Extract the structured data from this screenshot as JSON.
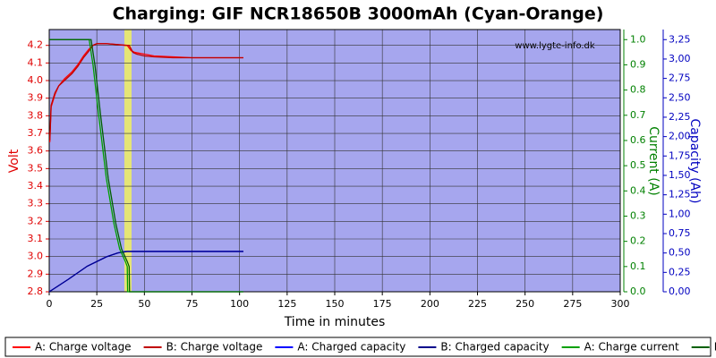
{
  "chart_data": {
    "type": "line",
    "title": "Charging: GIF NCR18650B 3000mAh (Cyan-Orange)",
    "watermark": "www.lygte-info.dk",
    "x_label": "Time in minutes",
    "y_label": "Volt",
    "y2_label": "Current (A)",
    "y3_label": "Capacity (Ah)",
    "xlim": [
      0,
      300
    ],
    "xticks": [
      0,
      25,
      50,
      75,
      100,
      125,
      150,
      175,
      200,
      225,
      250,
      275,
      300
    ],
    "ylim": [
      2.8,
      4.29
    ],
    "yticks": [
      2.8,
      2.9,
      {
        "value": 3.0,
        "label": "3.0"
      },
      3.1,
      3.2,
      3.3,
      3.4,
      3.5,
      3.6,
      3.7,
      3.8,
      3.9,
      {
        "value": 4.0,
        "label": "4.0"
      },
      4.1,
      4.2
    ],
    "y2lim": [
      0,
      1.04
    ],
    "y2ticks": [
      {
        "value": 0,
        "label": "0.0"
      },
      0.1,
      0.2,
      0.3,
      0.4,
      0.5,
      0.6,
      0.7,
      0.8,
      0.9,
      {
        "value": 1,
        "label": "1.0"
      }
    ],
    "y3lim": [
      0,
      3.38
    ],
    "y3ticks": [
      {
        "value": 0,
        "label": "0,00"
      },
      {
        "value": 0.25,
        "label": "0,25"
      },
      {
        "value": 0.5,
        "label": "0,50"
      },
      {
        "value": 0.75,
        "label": "0,75"
      },
      {
        "value": 1,
        "label": "1,00"
      },
      {
        "value": 1.25,
        "label": "1,25"
      },
      {
        "value": 1.5,
        "label": "1,50"
      },
      {
        "value": 1.75,
        "label": "1,75"
      },
      {
        "value": 2,
        "label": "2,00"
      },
      {
        "value": 2.25,
        "label": "2,25"
      },
      {
        "value": 2.5,
        "label": "2,50"
      },
      {
        "value": 2.75,
        "label": "2,75"
      },
      {
        "value": 3,
        "label": "3,00"
      },
      {
        "value": 3.25,
        "label": "3,25"
      }
    ],
    "grid": true,
    "series": [
      {
        "name": "A: Charge voltage",
        "color": "#ff0000",
        "axis": "y",
        "x": [
          0.3,
          1,
          3,
          5,
          8,
          12,
          15,
          18,
          21,
          23,
          25,
          30,
          40,
          41,
          43,
          45,
          50,
          55,
          65,
          75,
          90,
          102
        ],
        "values": [
          3.65,
          3.85,
          3.92,
          3.97,
          4.01,
          4.05,
          4.09,
          4.14,
          4.18,
          4.2,
          4.21,
          4.21,
          4.2,
          4.2,
          4.17,
          4.16,
          4.15,
          4.14,
          4.135,
          4.13,
          4.13,
          4.13
        ]
      },
      {
        "name": "B: Charge voltage",
        "color": "#c00000",
        "axis": "y",
        "x": [
          0.3,
          1,
          3,
          5,
          8,
          12,
          15,
          18,
          21,
          23,
          25,
          30,
          41,
          42,
          44,
          46,
          50,
          55,
          65,
          75,
          90,
          102
        ],
        "values": [
          3.66,
          3.86,
          3.93,
          3.97,
          4.0,
          4.04,
          4.08,
          4.13,
          4.17,
          4.2,
          4.21,
          4.21,
          4.2,
          4.2,
          4.16,
          4.15,
          4.14,
          4.135,
          4.13,
          4.13,
          4.13,
          4.13
        ]
      },
      {
        "name": "A: Charged capacity",
        "color": "#0000ff",
        "axis": "y3",
        "x": [
          0,
          10,
          20,
          30,
          36,
          40,
          50,
          75,
          102
        ],
        "values": [
          0,
          0.16,
          0.33,
          0.45,
          0.5,
          0.52,
          0.52,
          0.52,
          0.52
        ]
      },
      {
        "name": "B: Charged capacity",
        "color": "#00008b",
        "axis": "y3",
        "x": [
          0,
          10,
          20,
          30,
          36,
          41,
          50,
          75,
          102
        ],
        "values": [
          0,
          0.16,
          0.33,
          0.45,
          0.5,
          0.52,
          0.52,
          0.52,
          0.52
        ]
      },
      {
        "name": "A: Charge current",
        "color": "#00a000",
        "axis": "y2",
        "x": [
          0,
          21,
          23,
          26,
          30,
          34,
          37,
          40,
          41,
          41.2,
          60,
          102
        ],
        "values": [
          1,
          1,
          0.9,
          0.7,
          0.45,
          0.27,
          0.17,
          0.12,
          0.1,
          0,
          0,
          0
        ]
      },
      {
        "name": "B: Charge current",
        "color": "#006000",
        "axis": "y2",
        "x": [
          0,
          22,
          24,
          27,
          31,
          35,
          38,
          41,
          42,
          42.2,
          60,
          102
        ],
        "values": [
          1,
          1,
          0.9,
          0.7,
          0.45,
          0.27,
          0.17,
          0.12,
          0.1,
          0,
          0,
          0
        ]
      }
    ]
  }
}
